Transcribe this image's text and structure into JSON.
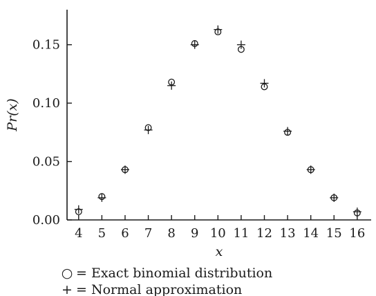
{
  "chart_data": {
    "type": "scatter",
    "title": "",
    "xlabel": "x",
    "ylabel": "Pr(x)",
    "x": [
      4,
      5,
      6,
      7,
      8,
      9,
      10,
      11,
      12,
      13,
      14,
      15,
      16
    ],
    "xlim": [
      3.5,
      16.6
    ],
    "ylim": [
      0,
      0.18
    ],
    "yticks": [
      0.0,
      0.05,
      0.1,
      0.15
    ],
    "ytick_labels": [
      "0.00",
      "0.05",
      "0.10",
      "0.15"
    ],
    "grid": false,
    "series": [
      {
        "name": "Exact binomial distribution",
        "marker": "circle",
        "values": [
          0.007,
          0.02,
          0.043,
          0.079,
          0.118,
          0.151,
          0.161,
          0.146,
          0.114,
          0.075,
          0.043,
          0.019,
          0.006
        ]
      },
      {
        "name": "Normal approximation",
        "marker": "plus",
        "values": [
          0.009,
          0.019,
          0.043,
          0.077,
          0.115,
          0.15,
          0.163,
          0.15,
          0.117,
          0.076,
          0.043,
          0.019,
          0.007
        ]
      }
    ],
    "legend": {
      "placement": "bottom-left",
      "entries": [
        {
          "symbol": "○",
          "text": "= Exact binomial distribution"
        },
        {
          "symbol": "+",
          "text": "= Normal approximation"
        }
      ]
    }
  }
}
